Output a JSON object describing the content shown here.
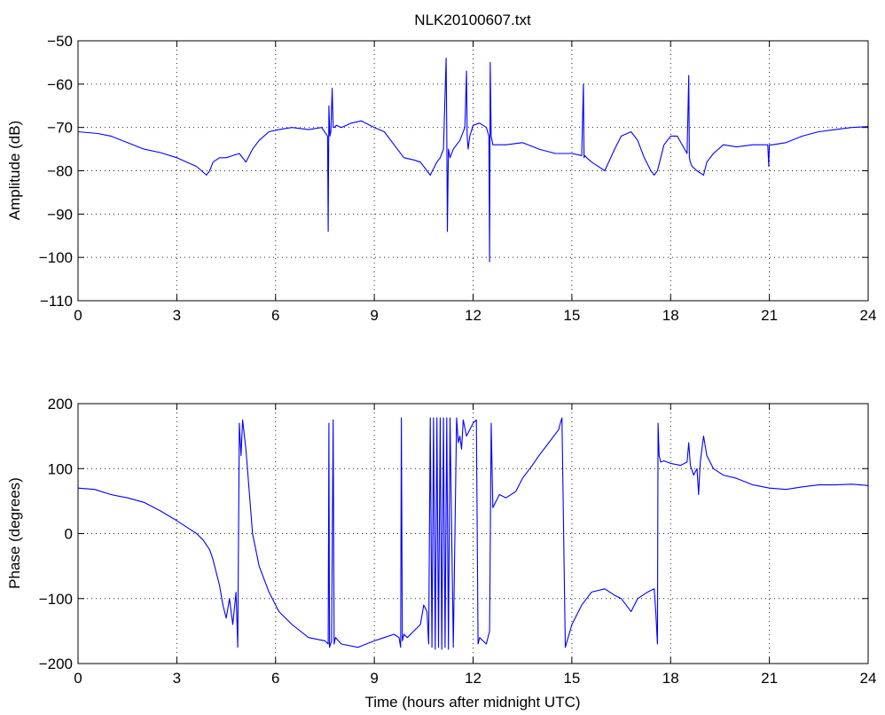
{
  "chart_data": [
    {
      "type": "line",
      "title": "NLK20100607.txt",
      "xlabel": "",
      "ylabel": "Amplitude (dB)",
      "xlim": [
        0,
        24
      ],
      "ylim": [
        -110,
        -50
      ],
      "xticks": [
        0,
        3,
        6,
        9,
        12,
        15,
        18,
        21,
        24
      ],
      "yticks": [
        -110,
        -100,
        -90,
        -80,
        -70,
        -60,
        -50
      ],
      "xtick_labels": [
        "0",
        "3",
        "6",
        "9",
        "12",
        "15",
        "18",
        "21",
        "24"
      ],
      "ytick_labels": [
        "−110",
        "−100",
        "−90",
        "−80",
        "−70",
        "−60",
        "−50"
      ],
      "grid": true,
      "color": "#0000ff",
      "series": [
        {
          "x": [
            0,
            0.3,
            0.6,
            1.0,
            1.5,
            2.0,
            2.5,
            3.0,
            3.3,
            3.6,
            3.9,
            4.0,
            4.1,
            4.3,
            4.5,
            4.7,
            4.9,
            5.1,
            5.3,
            5.5,
            5.8,
            6.1,
            6.5,
            7.0,
            7.4,
            7.58,
            7.6,
            7.62,
            7.65,
            7.68,
            7.72,
            7.75,
            7.78,
            7.85,
            8.0,
            8.3,
            8.6,
            9.0,
            9.3,
            9.6,
            9.9,
            10.2,
            10.4,
            10.6,
            10.7,
            10.9,
            11.0,
            11.1,
            11.18,
            11.2,
            11.22,
            11.25,
            11.3,
            11.4,
            11.6,
            11.75,
            11.8,
            11.82,
            11.85,
            11.9,
            12.0,
            12.2,
            12.4,
            12.48,
            12.5,
            12.52,
            12.55,
            12.6,
            12.8,
            13.0,
            13.5,
            14.0,
            14.5,
            15.0,
            15.3,
            15.35,
            15.37,
            15.39,
            15.45,
            15.6,
            15.8,
            16.0,
            16.3,
            16.5,
            16.8,
            17.0,
            17.2,
            17.4,
            17.5,
            17.6,
            17.8,
            18.0,
            18.2,
            18.5,
            18.55,
            18.57,
            18.6,
            18.65,
            18.8,
            19.0,
            19.1,
            19.3,
            19.6,
            20.0,
            20.5,
            20.95,
            20.98,
            21.0,
            21.1,
            21.5,
            22.0,
            22.5,
            23.0,
            23.5,
            24.0
          ],
          "y": [
            -71,
            -71.2,
            -71.4,
            -72,
            -73.5,
            -75,
            -75.8,
            -77,
            -78,
            -79,
            -81,
            -80,
            -78,
            -77,
            -77,
            -76.5,
            -76,
            -78,
            -75,
            -73,
            -71,
            -70.5,
            -70,
            -70.5,
            -70,
            -72,
            -94,
            -65,
            -72,
            -71,
            -61,
            -70,
            -70,
            -69.5,
            -70,
            -69,
            -68.5,
            -70,
            -71,
            -74,
            -77,
            -77.5,
            -78,
            -80,
            -81,
            -78,
            -77,
            -75,
            -54,
            -70,
            -94,
            -75,
            -77,
            -75,
            -73,
            -70,
            -57,
            -72,
            -75,
            -72,
            -69.5,
            -69,
            -70,
            -72,
            -101,
            -55,
            -72,
            -74,
            -74,
            -74,
            -73.5,
            -75,
            -76,
            -76,
            -76.5,
            -60,
            -77,
            -76.5,
            -77,
            -78,
            -79,
            -80,
            -75,
            -72,
            -71,
            -73,
            -77,
            -80,
            -81,
            -80,
            -74,
            -72,
            -72,
            -76,
            -58,
            -77,
            -78,
            -79,
            -80,
            -81,
            -78,
            -76,
            -74,
            -74.5,
            -74,
            -74,
            -79,
            -74,
            -74,
            -73.5,
            -72,
            -71,
            -70.5,
            -70,
            -69.8
          ]
        }
      ]
    },
    {
      "type": "line",
      "title": "",
      "xlabel": "Time (hours after midnight UTC)",
      "ylabel": "Phase (degrees)",
      "xlim": [
        0,
        24
      ],
      "ylim": [
        -200,
        200
      ],
      "xticks": [
        0,
        3,
        6,
        9,
        12,
        15,
        18,
        21,
        24
      ],
      "yticks": [
        -200,
        -100,
        0,
        100,
        200
      ],
      "xtick_labels": [
        "0",
        "3",
        "6",
        "9",
        "12",
        "15",
        "18",
        "21",
        "24"
      ],
      "ytick_labels": [
        "−200",
        "−100",
        "0",
        "100",
        "200"
      ],
      "grid": true,
      "color": "#0000ff",
      "series": [
        {
          "x": [
            0,
            0.5,
            1.0,
            1.5,
            2.0,
            2.5,
            3.0,
            3.3,
            3.6,
            3.8,
            4.0,
            4.1,
            4.2,
            4.3,
            4.4,
            4.5,
            4.6,
            4.7,
            4.8,
            4.85,
            4.9,
            4.95,
            5.0,
            5.1,
            5.3,
            5.5,
            5.8,
            6.1,
            6.5,
            7.0,
            7.5,
            7.6,
            7.62,
            7.64,
            7.7,
            7.75,
            7.78,
            7.82,
            8.0,
            8.5,
            9.0,
            9.3,
            9.6,
            9.75,
            9.8,
            9.82,
            9.85,
            9.9,
            10.0,
            10.2,
            10.4,
            10.5,
            10.6,
            10.65,
            10.7,
            10.75,
            10.8,
            10.85,
            10.9,
            10.95,
            11.0,
            11.05,
            11.1,
            11.15,
            11.2,
            11.25,
            11.3,
            11.4,
            11.5,
            11.55,
            11.6,
            11.65,
            11.7,
            11.8,
            11.9,
            12.0,
            12.1,
            12.15,
            12.2,
            12.3,
            12.4,
            12.5,
            12.55,
            12.6,
            12.7,
            12.8,
            13.0,
            13.3,
            13.5,
            13.8,
            14.0,
            14.3,
            14.6,
            14.65,
            14.7,
            14.8,
            15.0,
            15.3,
            15.6,
            16.0,
            16.3,
            16.5,
            16.8,
            17.0,
            17.3,
            17.5,
            17.55,
            17.6,
            17.62,
            17.65,
            17.7,
            17.8,
            18.0,
            18.3,
            18.5,
            18.55,
            18.6,
            18.7,
            18.8,
            18.85,
            18.9,
            19.0,
            19.1,
            19.3,
            19.6,
            20.0,
            20.5,
            21.0,
            21.5,
            22.0,
            22.5,
            23.0,
            23.5,
            24.0
          ],
          "y": [
            70,
            68,
            60,
            55,
            48,
            35,
            20,
            10,
            0,
            -10,
            -25,
            -40,
            -60,
            -80,
            -110,
            -130,
            -100,
            -140,
            -90,
            -175,
            170,
            120,
            175,
            130,
            0,
            -50,
            -90,
            -120,
            -140,
            -160,
            -165,
            -170,
            170,
            -175,
            -165,
            175,
            -170,
            -160,
            -170,
            -175,
            -165,
            -160,
            -155,
            -160,
            -175,
            178,
            -165,
            -155,
            -160,
            -150,
            -140,
            -110,
            -120,
            -170,
            178,
            -175,
            178,
            -178,
            178,
            -175,
            178,
            -178,
            178,
            -175,
            178,
            -178,
            178,
            -175,
            178,
            140,
            150,
            130,
            175,
            150,
            160,
            170,
            175,
            -170,
            -160,
            -165,
            -170,
            -150,
            170,
            40,
            50,
            60,
            55,
            65,
            85,
            105,
            120,
            140,
            160,
            170,
            178,
            -175,
            -140,
            -110,
            -90,
            -85,
            -95,
            -100,
            -120,
            -100,
            -90,
            -85,
            -120,
            -170,
            170,
            120,
            110,
            112,
            108,
            105,
            110,
            140,
            105,
            90,
            100,
            60,
            110,
            150,
            120,
            100,
            90,
            85,
            75,
            70,
            68,
            72,
            75,
            75,
            76,
            74
          ]
        }
      ]
    }
  ]
}
